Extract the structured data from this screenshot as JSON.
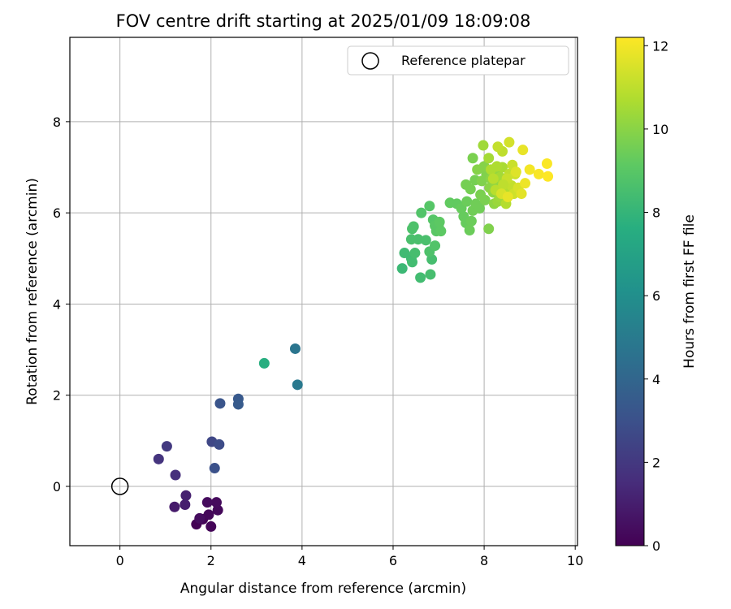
{
  "chart_data": {
    "type": "scatter",
    "title": "FOV centre drift starting at 2025/01/09 18:09:08",
    "xlabel": "Angular distance from reference (arcmin)",
    "ylabel": "Rotation from reference (arcmin)",
    "xlim": [
      -1.1,
      10.05
    ],
    "ylim": [
      -1.3,
      9.85
    ],
    "xticks": [
      0,
      2,
      4,
      6,
      8,
      10
    ],
    "yticks": [
      0,
      2,
      4,
      6,
      8
    ],
    "grid": true,
    "legend": {
      "position": "top-right",
      "entries": [
        "Reference platepar"
      ]
    },
    "colorbar": {
      "label": "Hours from first FF file",
      "range": [
        0,
        12.2
      ],
      "ticks": [
        0,
        2,
        4,
        6,
        8,
        10,
        12
      ],
      "colormap": "viridis"
    },
    "reference_point": {
      "x": 0,
      "y": 0,
      "label": "Reference platepar",
      "marker": "open-circle"
    },
    "points": [
      [
        1.68,
        -0.83,
        0.05
      ],
      [
        1.82,
        -0.72,
        0.1
      ],
      [
        2.0,
        -0.88,
        0.15
      ],
      [
        1.95,
        -0.62,
        0.2
      ],
      [
        2.15,
        -0.52,
        0.25
      ],
      [
        2.12,
        -0.35,
        0.3
      ],
      [
        1.92,
        -0.35,
        0.35
      ],
      [
        1.75,
        -0.7,
        0.4
      ],
      [
        1.2,
        -0.45,
        0.9
      ],
      [
        1.43,
        -0.4,
        1.0
      ],
      [
        1.45,
        -0.2,
        1.1
      ],
      [
        1.22,
        0.25,
        1.6
      ],
      [
        0.85,
        0.6,
        1.8
      ],
      [
        1.03,
        0.88,
        2.0
      ],
      [
        2.02,
        0.98,
        2.6
      ],
      [
        2.18,
        0.92,
        2.8
      ],
      [
        2.08,
        0.4,
        3.0
      ],
      [
        2.2,
        1.82,
        3.2
      ],
      [
        2.6,
        1.92,
        3.4
      ],
      [
        2.6,
        1.8,
        3.5
      ],
      [
        3.85,
        3.02,
        4.7
      ],
      [
        3.9,
        2.23,
        4.9
      ],
      [
        3.17,
        2.7,
        7.6
      ],
      [
        6.2,
        4.78,
        8.2
      ],
      [
        6.25,
        5.12,
        8.3
      ],
      [
        6.4,
        5.0,
        8.3
      ],
      [
        6.42,
        4.92,
        8.4
      ],
      [
        6.6,
        4.58,
        8.4
      ],
      [
        6.82,
        4.65,
        8.5
      ],
      [
        6.85,
        4.98,
        8.5
      ],
      [
        6.48,
        5.12,
        8.5
      ],
      [
        6.4,
        5.42,
        8.6
      ],
      [
        6.55,
        5.42,
        8.6
      ],
      [
        6.72,
        5.4,
        8.6
      ],
      [
        6.42,
        5.65,
        8.7
      ],
      [
        6.45,
        5.7,
        8.7
      ],
      [
        6.8,
        5.15,
        8.7
      ],
      [
        6.92,
        5.28,
        8.8
      ],
      [
        6.62,
        6.0,
        8.8
      ],
      [
        6.8,
        6.15,
        8.9
      ],
      [
        6.88,
        5.85,
        8.9
      ],
      [
        6.92,
        5.72,
        9.0
      ],
      [
        6.95,
        5.6,
        9.0
      ],
      [
        7.0,
        5.7,
        9.0
      ],
      [
        7.02,
        5.8,
        9.1
      ],
      [
        7.05,
        5.6,
        9.1
      ],
      [
        7.25,
        6.22,
        9.2
      ],
      [
        7.4,
        6.2,
        9.2
      ],
      [
        7.5,
        6.1,
        9.3
      ],
      [
        7.55,
        5.92,
        9.3
      ],
      [
        7.6,
        5.78,
        9.3
      ],
      [
        7.68,
        5.62,
        9.4
      ],
      [
        7.72,
        5.82,
        9.4
      ],
      [
        7.62,
        6.25,
        9.4
      ],
      [
        7.75,
        6.05,
        9.5
      ],
      [
        7.82,
        6.2,
        9.5
      ],
      [
        7.9,
        6.1,
        9.5
      ],
      [
        7.6,
        6.62,
        9.6
      ],
      [
        7.7,
        6.52,
        9.6
      ],
      [
        7.8,
        6.72,
        9.6
      ],
      [
        7.92,
        6.4,
        9.7
      ],
      [
        8.02,
        6.28,
        9.7
      ],
      [
        7.75,
        7.2,
        9.7
      ],
      [
        8.1,
        5.65,
        9.8
      ],
      [
        7.95,
        6.7,
        9.8
      ],
      [
        8.05,
        6.85,
        9.8
      ],
      [
        8.0,
        7.02,
        9.9
      ],
      [
        7.85,
        6.95,
        9.9
      ],
      [
        8.12,
        6.55,
        10.0
      ],
      [
        8.15,
        6.75,
        10.0
      ],
      [
        8.2,
        6.45,
        10.1
      ],
      [
        8.22,
        6.2,
        10.1
      ],
      [
        8.25,
        6.6,
        10.2
      ],
      [
        8.3,
        6.9,
        10.2
      ],
      [
        8.3,
        6.25,
        10.3
      ],
      [
        8.35,
        6.35,
        10.4
      ],
      [
        7.98,
        7.48,
        10.4
      ],
      [
        8.1,
        7.2,
        10.5
      ],
      [
        8.35,
        6.78,
        10.5
      ],
      [
        8.4,
        7.0,
        10.6
      ],
      [
        8.45,
        6.55,
        10.6
      ],
      [
        8.15,
        6.95,
        10.7
      ],
      [
        8.28,
        7.02,
        10.7
      ],
      [
        8.48,
        6.2,
        10.8
      ],
      [
        8.5,
        6.45,
        10.8
      ],
      [
        8.2,
        6.75,
        10.9
      ],
      [
        8.25,
        6.5,
        10.9
      ],
      [
        8.55,
        6.85,
        11.0
      ],
      [
        8.4,
        7.35,
        11.0
      ],
      [
        8.3,
        7.45,
        11.1
      ],
      [
        8.6,
        6.6,
        11.1
      ],
      [
        8.62,
        7.05,
        11.2
      ],
      [
        8.5,
        6.75,
        11.2
      ],
      [
        8.65,
        6.42,
        11.3
      ],
      [
        8.68,
        6.85,
        11.3
      ],
      [
        8.55,
        7.55,
        11.4
      ],
      [
        8.75,
        6.55,
        11.5
      ],
      [
        8.7,
        6.9,
        11.6
      ],
      [
        8.82,
        6.42,
        11.7
      ],
      [
        8.85,
        7.38,
        11.8
      ],
      [
        8.9,
        6.65,
        11.9
      ],
      [
        9.0,
        6.95,
        12.0
      ],
      [
        9.2,
        6.85,
        12.1
      ],
      [
        9.38,
        7.08,
        12.15
      ],
      [
        9.4,
        6.8,
        12.2
      ],
      [
        8.42,
        6.62,
        11.0
      ],
      [
        8.38,
        6.42,
        11.5
      ],
      [
        8.52,
        6.35,
        11.8
      ]
    ]
  }
}
